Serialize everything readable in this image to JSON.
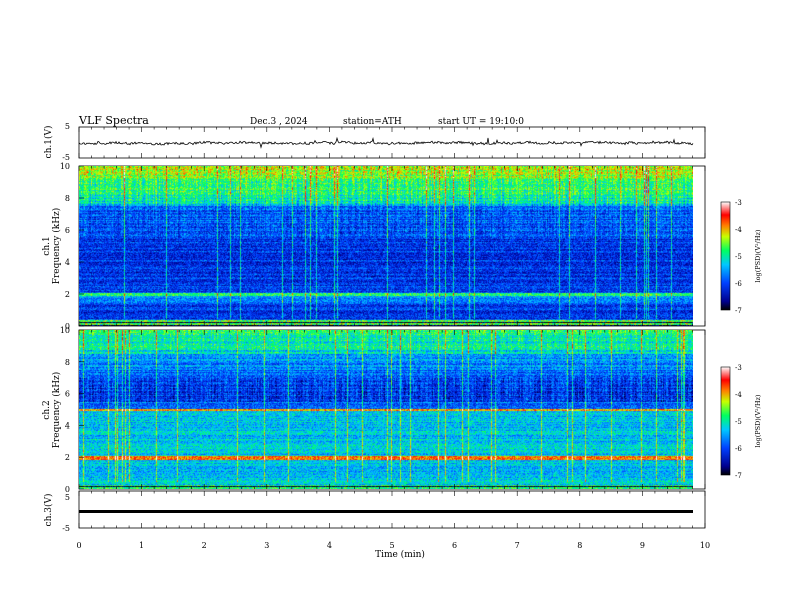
{
  "header": {
    "title": "VLF Spectra",
    "date": "Dec.3 , 2024",
    "station": "station=ATH",
    "start": "start UT = 19:10:0"
  },
  "chart_data": [
    {
      "type": "line",
      "ylabel": "ch.1(V)",
      "ylim": [
        -5,
        5
      ],
      "yticks": [
        "5",
        "-5"
      ],
      "color": "#000000"
    },
    {
      "type": "heatmap",
      "ylabel": "ch.1 Frequency (kHz)",
      "ylim": [
        0,
        10
      ],
      "yticks": [
        "0",
        "2",
        "4",
        "6",
        "8",
        "10"
      ],
      "colorbar": {
        "label": "log(PSD)(V²/Hz)",
        "range": [
          -7,
          -3
        ],
        "ticks": [
          "-3",
          "-4",
          "-5",
          "-6",
          "-7"
        ]
      }
    },
    {
      "type": "heatmap",
      "ylabel": "ch.2 Frequency (kHz)",
      "ylim": [
        0,
        10
      ],
      "yticks": [
        "0",
        "2",
        "4",
        "6",
        "8",
        "10"
      ],
      "colorbar": {
        "label": "log(PSD)(V²/Hz)",
        "range": [
          -7,
          -3
        ],
        "ticks": [
          "-3",
          "-4",
          "-5",
          "-6",
          "-7"
        ]
      }
    },
    {
      "type": "line",
      "ylabel": "ch.3(V)",
      "ylim": [
        -5,
        5
      ],
      "yticks": [
        "5",
        "-5"
      ],
      "color": "#000000"
    }
  ],
  "xaxis": {
    "label": "Time (min)",
    "range": [
      0,
      10
    ],
    "ticks": [
      "0",
      "1",
      "2",
      "3",
      "4",
      "5",
      "6",
      "7",
      "8",
      "9",
      "10"
    ]
  }
}
